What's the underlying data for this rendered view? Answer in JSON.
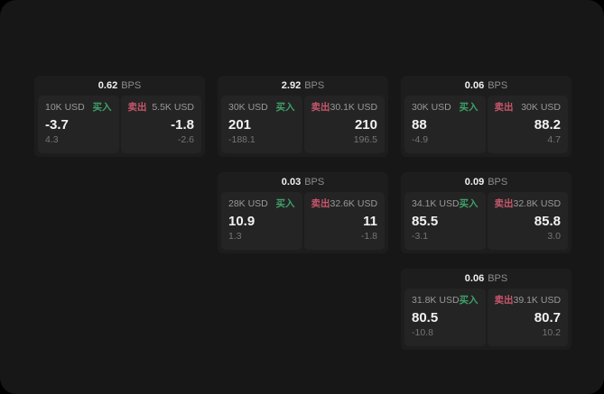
{
  "labels": {
    "bps_unit": "BPS",
    "buy": "买入",
    "sell": "卖出"
  },
  "colors": {
    "background": "#000000",
    "surface": "#171717",
    "card": "#1d1d1d",
    "panel": "#242424",
    "buy_green": "#3fa169",
    "sell_red": "#c8566b",
    "text_primary": "#f2f2f2",
    "text_muted": "#999999",
    "text_faint": "#757575"
  },
  "cards": [
    {
      "bps": "0.62",
      "buy": {
        "amount": "10K USD",
        "price": "-3.7",
        "sub": "4.3"
      },
      "sell": {
        "amount": "5.5K USD",
        "price": "-1.8",
        "sub": "-2.6"
      }
    },
    {
      "bps": "2.92",
      "buy": {
        "amount": "30K USD",
        "price": "201",
        "sub": "-188.1"
      },
      "sell": {
        "amount": "30.1K USD",
        "price": "210",
        "sub": "196.5"
      }
    },
    {
      "bps": "0.06",
      "buy": {
        "amount": "30K USD",
        "price": "88",
        "sub": "-4.9"
      },
      "sell": {
        "amount": "30K USD",
        "price": "88.2",
        "sub": "4.7"
      }
    },
    {
      "bps": "0.03",
      "buy": {
        "amount": "28K USD",
        "price": "10.9",
        "sub": "1.3"
      },
      "sell": {
        "amount": "32.6K USD",
        "price": "11",
        "sub": "-1.8"
      }
    },
    {
      "bps": "0.09",
      "buy": {
        "amount": "34.1K USD",
        "price": "85.5",
        "sub": "-3.1"
      },
      "sell": {
        "amount": "32.8K USD",
        "price": "85.8",
        "sub": "3.0"
      }
    },
    {
      "bps": "0.06",
      "buy": {
        "amount": "31.8K USD",
        "price": "80.5",
        "sub": "-10.8"
      },
      "sell": {
        "amount": "39.1K USD",
        "price": "80.7",
        "sub": "10.2"
      }
    }
  ]
}
